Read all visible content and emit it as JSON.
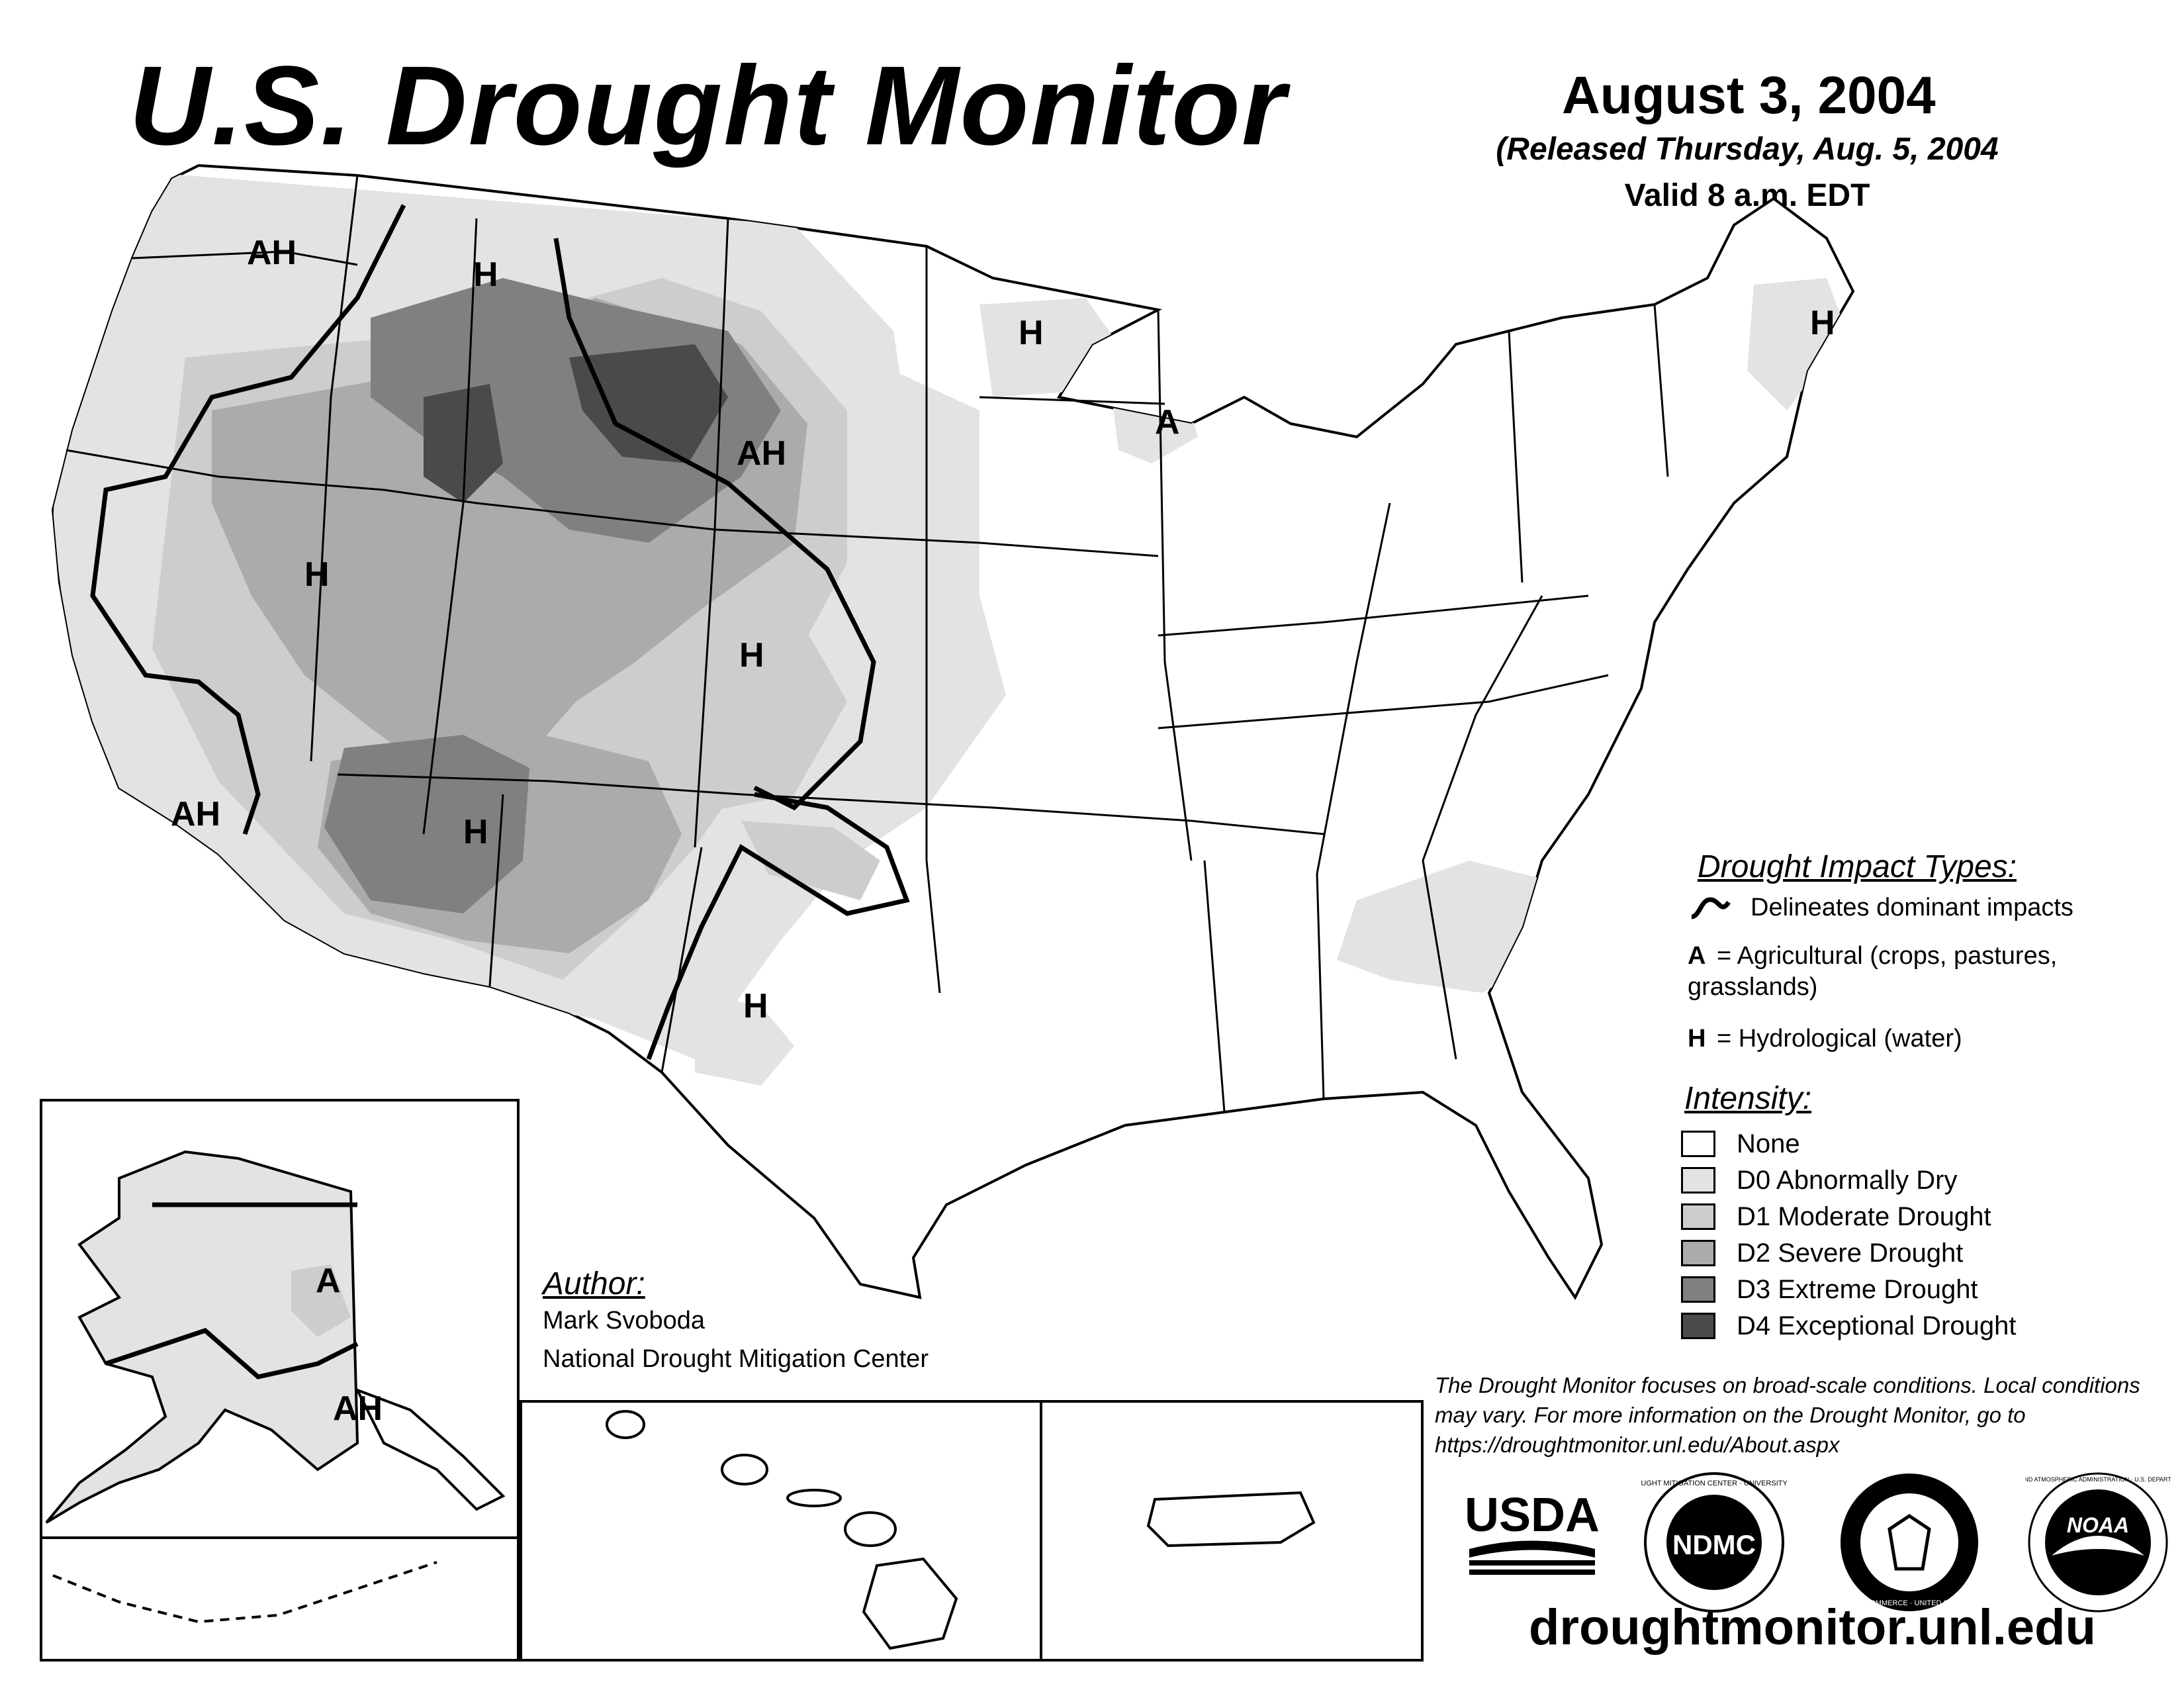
{
  "header": {
    "title": "U.S. Drought Monitor",
    "date": "August 3, 2004",
    "released": "(Released Thursday, Aug. 5, 2004",
    "valid": "Valid 8 a.m. EDT"
  },
  "map_labels": {
    "washington": "AH",
    "montana": "H",
    "wyoming_dakota": "AH",
    "minnesota": "H",
    "wisconsin": "A",
    "maine": "H",
    "nevada": "H",
    "colorado_kansas": "H",
    "california": "AH",
    "arizona": "H",
    "texas": "H",
    "alaska_interior": "A",
    "alaska_south": "AH"
  },
  "impact_types": {
    "heading": "Drought Impact Types:",
    "delineates": "Delineates dominant impacts",
    "a_key": "A",
    "a_desc": "= Agricultural (crops, pastures,",
    "a_desc2": "grasslands)",
    "h_key": "H",
    "h_desc": "= Hydrological (water)"
  },
  "intensity": {
    "heading": "Intensity:",
    "levels": [
      {
        "label": "None",
        "color": "#ffffff"
      },
      {
        "label": "D0 Abnormally Dry",
        "color": "#e3e3e3"
      },
      {
        "label": "D1 Moderate Drought",
        "color": "#cdcdcd"
      },
      {
        "label": "D2 Severe Drought",
        "color": "#ababab"
      },
      {
        "label": "D3 Extreme Drought",
        "color": "#808080"
      },
      {
        "label": "D4 Exceptional Drought",
        "color": "#4a4a4a"
      }
    ]
  },
  "author": {
    "heading": "Author:",
    "name": "Mark Svoboda",
    "org": "National Drought Mitigation Center"
  },
  "disclaimer": "The Drought Monitor focuses on broad-scale conditions. Local conditions may vary. For more information on the Drought Monitor, go to https://droughtmonitor.unl.edu/About.aspx",
  "logos": {
    "usda": "USDA",
    "ndmc": "NDMC",
    "ndmc_ring": "NATIONAL DROUGHT MITIGATION CENTER · UNIVERSITY OF NEBRASKA",
    "commerce_ring": "DEPARTMENT OF COMMERCE · UNITED STATES OF AMERICA",
    "noaa": "NOAA",
    "noaa_ring": "NATIONAL OCEANIC AND ATMOSPHERIC ADMINISTRATION · U.S. DEPARTMENT OF COMMERCE"
  },
  "footer_url": "droughtmonitor.unl.edu"
}
